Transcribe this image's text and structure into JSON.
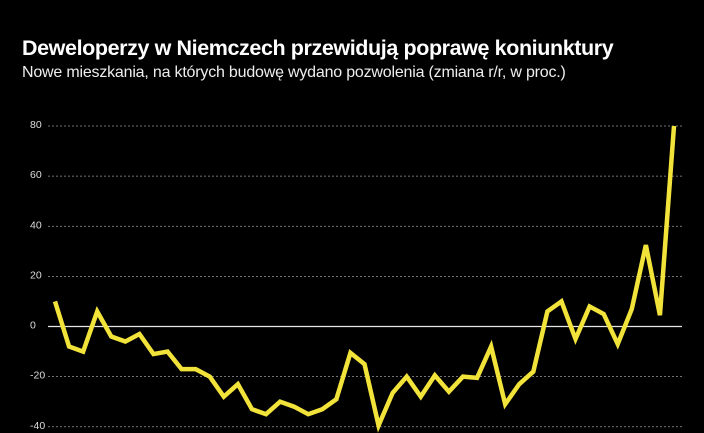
{
  "chart_data": {
    "type": "line",
    "title": "Deweloperzy w Niemczech przewidują poprawę koniunktury",
    "subtitle": "Nowe mieszkania, na których budowę wydano pozwolenia (zmiana r/r, w proc.)",
    "xlabel": "",
    "ylabel": "",
    "ylim": [
      -40,
      80
    ],
    "yticks": [
      80,
      60,
      40,
      20,
      0,
      -20,
      -40
    ],
    "ytick_labels": [
      "80",
      "60",
      "40",
      "20",
      "0",
      "-20",
      "-40"
    ],
    "grid": true,
    "legend": "none",
    "line_color": "#f2e33a",
    "grid_color": "#9a9a9a",
    "zero_line_color": "#e6e6e6",
    "series": [
      {
        "values": [
          10,
          -8,
          -10,
          6,
          -4,
          -6,
          -3,
          -11,
          -10,
          -17,
          -17,
          -20,
          -28,
          -23,
          -33,
          -35,
          -30,
          -32,
          -35,
          -33,
          -29,
          -10.5,
          -15,
          -39.5,
          -26.5,
          -20,
          -28,
          -19.5,
          -26,
          -20,
          -20.5,
          -8,
          -31,
          -23,
          -18,
          6,
          10,
          -5,
          8,
          5,
          -7,
          7,
          32.5,
          4.5,
          80
        ]
      }
    ]
  }
}
